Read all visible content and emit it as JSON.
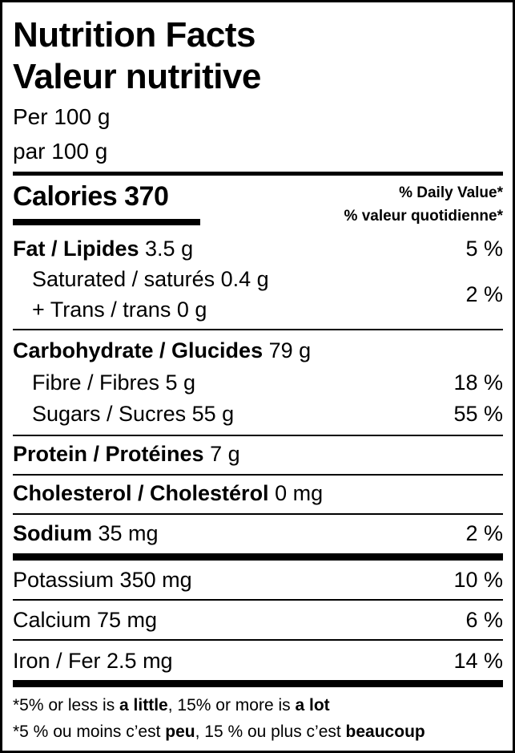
{
  "title_en": "Nutrition Facts",
  "title_fr": "Valeur nutritive",
  "serving_en": "Per 100 g",
  "serving_fr": "par 100 g",
  "calories_label": "Calories 370",
  "dv_en": "% Daily Value*",
  "dv_fr": "% valeur quotidienne*",
  "rows": {
    "fat": {
      "name": "Fat / Lipides",
      "amount": " 3.5 g",
      "dv": "5 %"
    },
    "saturated": {
      "name": "Saturated / saturés 0.4 g"
    },
    "trans": {
      "name": "+ Trans / trans 0 g",
      "dv": "2 %"
    },
    "carb": {
      "name": "Carbohydrate / Glucides",
      "amount": " 79 g"
    },
    "fibre": {
      "name": "Fibre / Fibres 5 g",
      "dv": "18 %"
    },
    "sugars": {
      "name": "Sugars / Sucres 55 g",
      "dv": "55 %"
    },
    "protein": {
      "name": "Protein / Protéines",
      "amount": " 7 g"
    },
    "cholesterol": {
      "name": "Cholesterol / Cholestérol",
      "amount": " 0 mg"
    },
    "sodium": {
      "name": "Sodium",
      "amount": " 35 mg",
      "dv": "2 %"
    },
    "potassium": {
      "name": "Potassium 350 mg",
      "dv": "10 %"
    },
    "calcium": {
      "name": "Calcium 75 mg",
      "dv": "6 %"
    },
    "iron": {
      "name": "Iron / Fer 2.5 mg",
      "dv": "14 %"
    }
  },
  "footnote_en": {
    "a": "*5% or less is ",
    "b": "a little",
    "c": ", 15% or more is ",
    "d": "a lot"
  },
  "footnote_fr": {
    "a": "*5 % ou moins c’est ",
    "b": "peu",
    "c": ", 15 % ou plus c’est ",
    "d": "beaucoup"
  }
}
